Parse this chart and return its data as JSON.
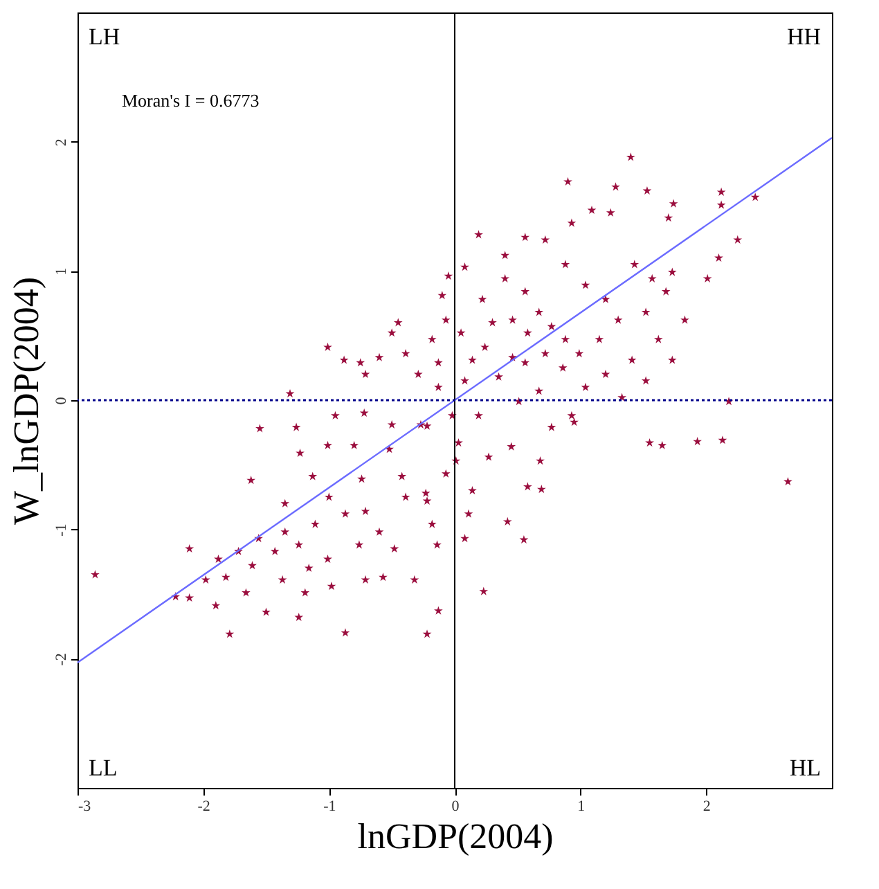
{
  "chart_data": {
    "type": "scatter",
    "xlabel": "lnGDP(2004)",
    "ylabel": "W_lnGDP(2004)",
    "xlim": [
      -3,
      3
    ],
    "ylim": [
      -3,
      3
    ],
    "xticks": [
      -3,
      -2,
      -1,
      0,
      1,
      2
    ],
    "yticks": [
      -2,
      -1,
      0,
      1,
      2
    ],
    "annotations": [
      "LH",
      "HH",
      "LL",
      "HL",
      "Moran's I = 0.6773"
    ],
    "ref_lines": [
      {
        "axis": "x",
        "value": 0,
        "color": "#000000",
        "line_style": "solid"
      },
      {
        "axis": "y",
        "value": 0,
        "color": "#00008b",
        "line_style": "dotted"
      }
    ],
    "series": [
      {
        "type": "scatter",
        "marker": "star",
        "color": "#9b0e3e",
        "x": [
          -1.01,
          -0.88,
          -1.31,
          -1.55,
          -1.26,
          -1.23,
          -1.62,
          -2.11,
          -2.11,
          -1.9,
          -1.79,
          -1.5,
          -0.87,
          -0.57,
          -0.32,
          -0.95,
          -0.72,
          -0.5,
          -0.27,
          -1.01,
          -0.8,
          -0.52,
          -1.13,
          -0.74,
          -0.42,
          -0.23,
          -0.71,
          -0.87,
          -1.11,
          -1.35,
          -1.56,
          -1.72,
          -1.88,
          -1.82,
          -1.61,
          -1.43,
          -1.24,
          -1.37,
          -1.16,
          -1.01,
          -1.19,
          -0.98,
          -0.71,
          -1.24,
          -1.66,
          -1.98,
          -2.86,
          -2.22,
          -0.6,
          -0.48,
          -0.76,
          -1.35,
          -1.0,
          -0.39,
          -0.18,
          -0.14,
          -0.13,
          -0.29,
          -0.39,
          -0.6,
          -0.5,
          -0.71,
          -0.18,
          -0.07,
          -0.1,
          -0.05,
          0.05,
          0.14,
          0.24,
          0.08,
          -0.02,
          0.03,
          0.19,
          0.35,
          0.46,
          0.3,
          0.22,
          0.4,
          0.56,
          0.67,
          0.46,
          0.58,
          0.77,
          0.88,
          0.72,
          0.56,
          0.99,
          1.15,
          1.3,
          1.2,
          1.04,
          0.88,
          0.72,
          0.56,
          0.4,
          0.19,
          0.08,
          0.93,
          1.09,
          1.24,
          1.43,
          1.57,
          1.73,
          1.68,
          1.52,
          1.62,
          1.83,
          2.01,
          2.1,
          1.2,
          1.41,
          1.04,
          0.86,
          1.52,
          1.73,
          0.93,
          0.67,
          0.51,
          1.4,
          0.9,
          1.28,
          1.53,
          1.74,
          1.7,
          2.39,
          2.12,
          2.12,
          2.25,
          1.55,
          1.65,
          1.93,
          2.13,
          2.18,
          2.65,
          1.33,
          0.95,
          0.77,
          0.45,
          0.68,
          0.27,
          0.14,
          0.58,
          0.69,
          0.11,
          0.42,
          0.08,
          0.55,
          0.23,
          -0.13,
          -0.22,
          0.01,
          -0.07,
          -0.22,
          -0.45,
          -0.75,
          -0.22,
          -0.13
        ],
        "values": [
          0.41,
          0.31,
          0.05,
          -0.22,
          -0.21,
          -0.41,
          -0.62,
          -1.15,
          -1.53,
          -1.59,
          -1.81,
          -1.64,
          -1.8,
          -1.37,
          -1.39,
          -0.12,
          -0.1,
          -0.19,
          -0.19,
          -0.35,
          -0.35,
          -0.38,
          -0.59,
          -0.61,
          -0.59,
          -0.72,
          -0.86,
          -0.88,
          -0.96,
          -1.02,
          -1.07,
          -1.17,
          -1.23,
          -1.37,
          -1.28,
          -1.17,
          -1.12,
          -1.39,
          -1.3,
          -1.23,
          -1.49,
          -1.44,
          -1.39,
          -1.68,
          -1.49,
          -1.39,
          -1.35,
          -1.52,
          -1.02,
          -1.15,
          -1.12,
          -0.8,
          -0.75,
          -0.75,
          -0.96,
          -1.12,
          0.29,
          0.2,
          0.36,
          0.33,
          0.52,
          0.2,
          0.47,
          0.62,
          0.81,
          0.96,
          0.52,
          0.31,
          0.41,
          0.15,
          -0.12,
          -0.33,
          -0.12,
          0.18,
          0.33,
          0.6,
          0.78,
          0.94,
          0.84,
          0.68,
          0.62,
          0.52,
          0.57,
          0.47,
          0.36,
          0.29,
          0.36,
          0.47,
          0.62,
          0.78,
          0.89,
          1.05,
          1.24,
          1.26,
          1.12,
          1.28,
          1.03,
          1.37,
          1.47,
          1.45,
          1.05,
          0.94,
          0.99,
          0.84,
          0.68,
          0.47,
          0.62,
          0.94,
          1.1,
          0.2,
          0.31,
          0.1,
          0.25,
          0.15,
          0.31,
          -0.12,
          0.07,
          -0.01,
          1.88,
          1.69,
          1.65,
          1.62,
          1.52,
          1.41,
          1.57,
          1.61,
          1.51,
          1.24,
          -0.33,
          -0.35,
          -0.32,
          -0.31,
          -0.01,
          -0.63,
          0.02,
          -0.17,
          -0.21,
          -0.36,
          -0.47,
          -0.44,
          -0.7,
          -0.67,
          -0.69,
          -0.88,
          -0.94,
          -1.07,
          -1.08,
          -1.48,
          -1.63,
          -1.81,
          -0.47,
          -0.57,
          -0.78,
          0.6,
          0.29,
          -0.2,
          0.1
        ]
      },
      {
        "type": "line",
        "color": "#6b6bff",
        "x": [
          -3,
          3
        ],
        "values": [
          -2.03,
          2.03
        ]
      }
    ]
  }
}
